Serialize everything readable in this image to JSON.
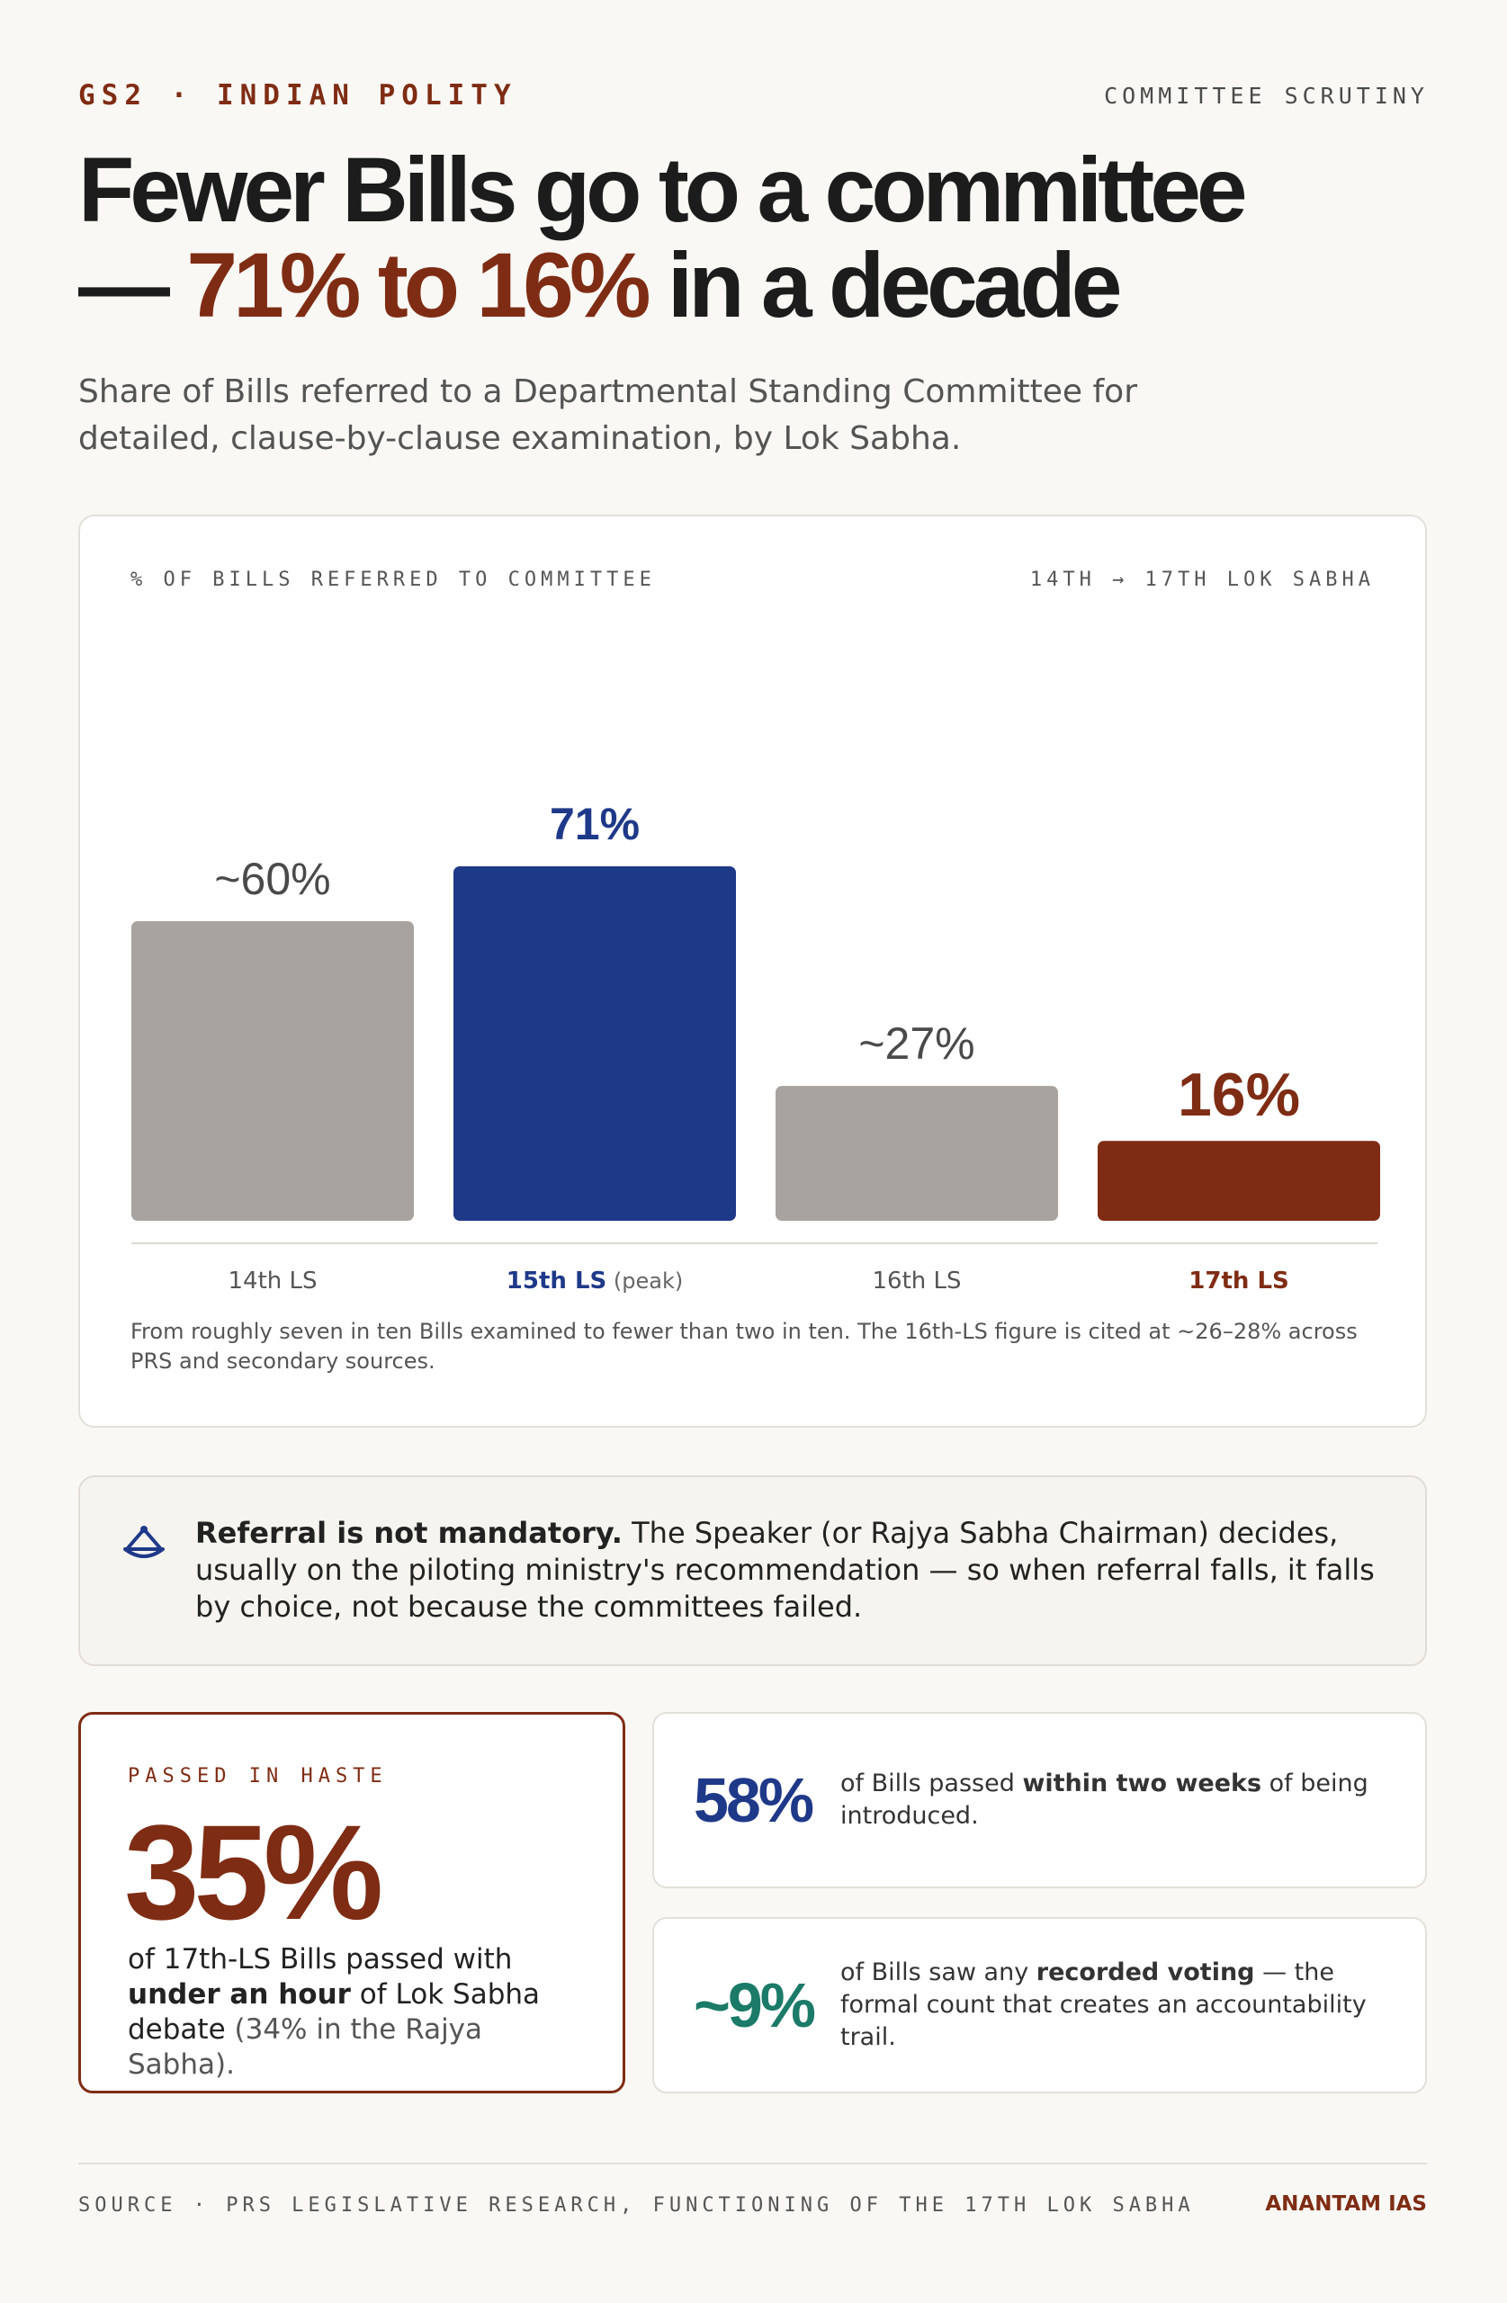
{
  "header": {
    "kicker": "GS2 · INDIAN POLITY",
    "kicker_right": "COMMITTEE SCRUTINY",
    "title_line1": "Fewer Bills go to a committee",
    "title_dash": "— ",
    "title_accent": "71% to 16%",
    "title_tail": " in a decade",
    "subtitle": "Share of Bills referred to a Departmental Standing Committee for detailed, clause-by-clause examination, by Lok Sabha."
  },
  "chart_card": {
    "label_left": "% OF BILLS REFERRED TO COMMITTEE",
    "label_right": "14TH → 17TH LOK SABHA",
    "note": "From roughly seven in ten Bills examined to fewer than two in ten. The 16th-LS figure is cited at ~26–28% across PRS and secondary sources."
  },
  "chart_data": {
    "type": "bar",
    "categories": [
      "14th LS",
      "15th LS",
      "16th LS",
      "17th LS"
    ],
    "category_suffixes": [
      "",
      " (peak)",
      "",
      ""
    ],
    "values": [
      60,
      71,
      27,
      16
    ],
    "value_labels": [
      "~60%",
      "71%",
      "~27%",
      "16%"
    ],
    "colors": [
      "#a8a39e",
      "#1f3989",
      "#a8a39e",
      "#7f2c14"
    ],
    "label_colors": [
      "#4a4a4a",
      "#1f3989",
      "#4a4a4a",
      "#7f2c14"
    ],
    "ylim": [
      0,
      100
    ],
    "grid": false
  },
  "callout": {
    "icon": "scales-icon",
    "bold": "Referral is not mandatory.",
    "text": " The Speaker (or Rajya Sabha Chairman) decides, usually on the piloting ministry's recommendation — so when referral falls, it falls by choice, not because the committees failed."
  },
  "haste": {
    "kicker": "PASSED IN HASTE",
    "value": "35%",
    "text_a": "of 17th-LS Bills passed with ",
    "text_bold": "under an hour",
    "text_b": " of Lok Sabha debate ",
    "text_muted": "(34% in the Rajya Sabha)."
  },
  "stats": [
    {
      "value": "58%",
      "color": "#1f3989",
      "text_a": "of Bills passed ",
      "text_bold": "within two weeks",
      "text_b": " of being introduced."
    },
    {
      "value": "~9%",
      "color": "#1b7a68",
      "text_a": "of Bills saw any ",
      "text_bold": "recorded voting",
      "text_b": " — the formal count that creates an accountability trail."
    }
  ],
  "footer": {
    "source": "SOURCE · PRS LEGISLATIVE RESEARCH, FUNCTIONING OF THE 17TH LOK SABHA",
    "brand": "ANANTAM IAS"
  }
}
